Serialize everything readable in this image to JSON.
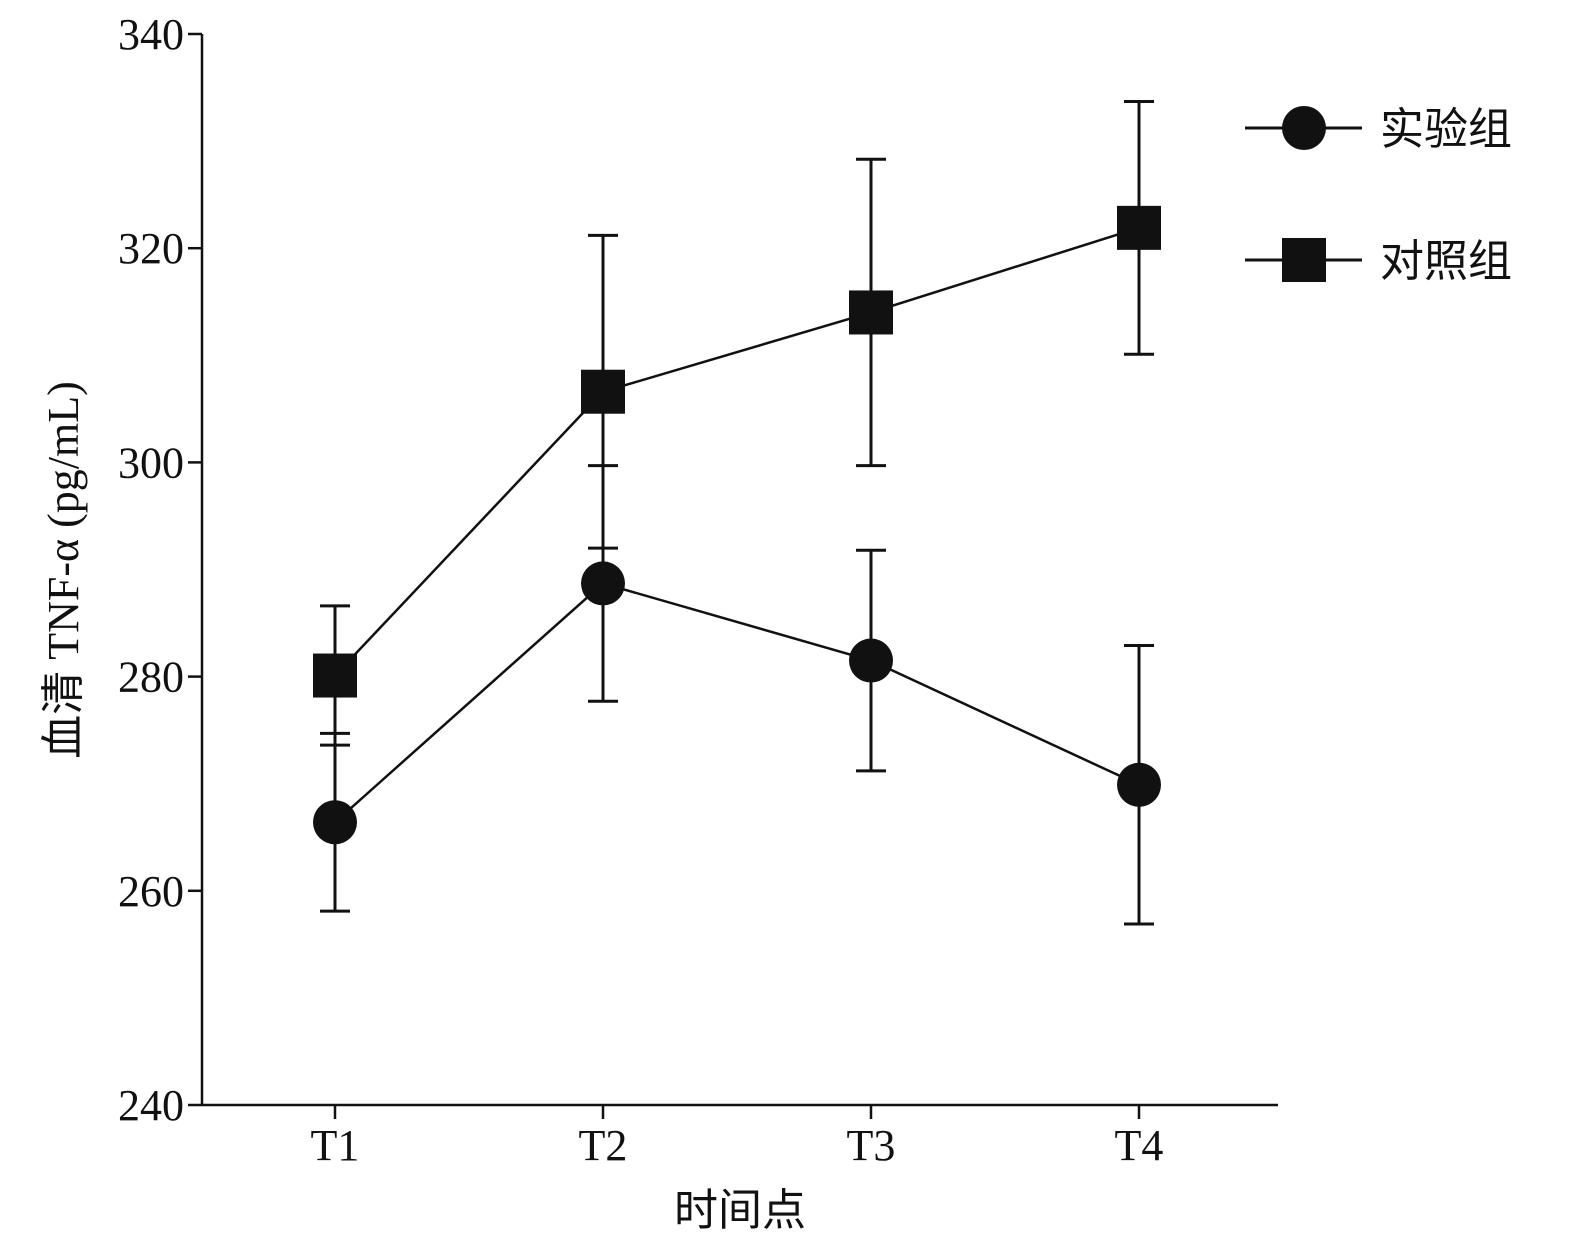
{
  "chart_data": {
    "type": "line",
    "title": "",
    "xlabel": "时间点",
    "ylabel": "血清 TNF-α (pg/mL)",
    "categories": [
      "T1",
      "T2",
      "T3",
      "T4"
    ],
    "ylim": [
      240,
      340
    ],
    "yticks": [
      240,
      260,
      280,
      300,
      320,
      340
    ],
    "grid": false,
    "legend_position": "top-right",
    "series": [
      {
        "name": "实验组",
        "marker": "circle",
        "values": [
          266.4,
          288.7,
          281.5,
          269.9
        ],
        "errors": [
          8.3,
          11.0,
          10.3,
          13.0
        ]
      },
      {
        "name": "对照组",
        "marker": "square",
        "values": [
          280.1,
          306.6,
          314.0,
          321.9
        ],
        "errors": [
          6.5,
          14.6,
          14.3,
          11.8
        ]
      }
    ],
    "colors": {
      "line": "#111111",
      "marker": "#111111"
    }
  }
}
